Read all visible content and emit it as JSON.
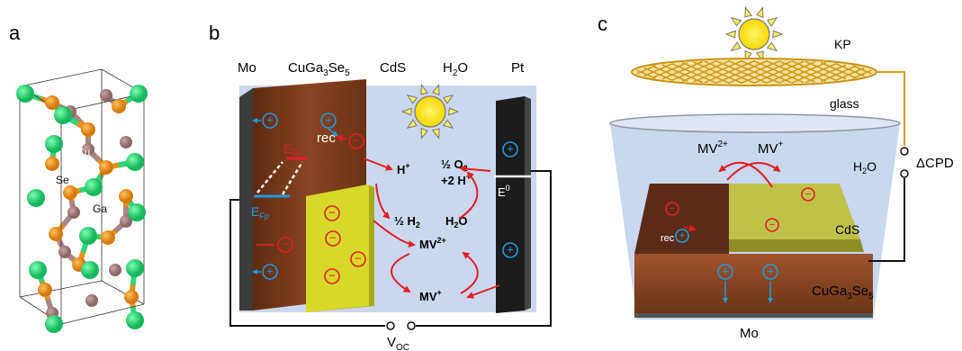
{
  "panel_a": {
    "letter": "a",
    "atoms": {
      "cu": "Cu",
      "se": "Se",
      "ga": "Ga"
    },
    "colors": {
      "se": "#e8901c",
      "cu": "#a98484",
      "ga": "#2ed67a"
    }
  },
  "panel_b": {
    "letter": "b",
    "headers": {
      "mo": "Mo",
      "cuga_base": "CuGa",
      "cuga_sub1": "3",
      "cuga_mid": "Se",
      "cuga_sub2": "5",
      "cds": "CdS",
      "h2o_base": "H",
      "h2o_sub": "2",
      "h2o_end": "O",
      "pt": "Pt"
    },
    "efn_base": "E",
    "efn_sub": "Fn",
    "efp_base": "E",
    "efp_sub": "Fp",
    "rec": "rec",
    "h_plus": "H",
    "plus_sup": "+",
    "half_o2_line1": "½ O",
    "o2_sub": "2",
    "half_o2_line2": "+2 H",
    "half_h2": "½ H",
    "h2_sub": "2",
    "h2o_right_base": "H",
    "h2o_right_sub": "2",
    "h2o_right_end": "O",
    "e0_base": "E",
    "e0_sup": "0",
    "mv2": "MV",
    "mv2_sup": "2+",
    "mv": "MV",
    "mv_sup": "+",
    "voc_base": "V",
    "voc_sub": "OC",
    "colors": {
      "water": "#cbd7ee",
      "cuga": "#7a3b1b",
      "cds": "#d6d82a",
      "mo": "#3c3c3c",
      "pt": "#1c1c1c",
      "red": "#e31e24",
      "blue": "#1e9be0"
    }
  },
  "panel_c": {
    "letter": "c",
    "kp": "KP",
    "glass": "glass",
    "mv2": "MV",
    "mv2_sup": "2+",
    "mv": "MV",
    "mv_sup": "+",
    "h2o_base": "H",
    "h2o_sub": "2",
    "h2o_end": "O",
    "cpd": "ΔCPD",
    "rec": "rec",
    "cds": "CdS",
    "cuga_base": "CuGa",
    "cuga_sub1": "3",
    "cuga_mid": "Se",
    "cuga_sub2": "5",
    "mo": "Mo",
    "colors": {
      "grid": "#e0ad2a",
      "water": "#c9d7ef",
      "cuga": "#7d3d1d",
      "cds": "#bfc24a"
    }
  },
  "symbols": {
    "plus": "+",
    "minus": "−"
  }
}
